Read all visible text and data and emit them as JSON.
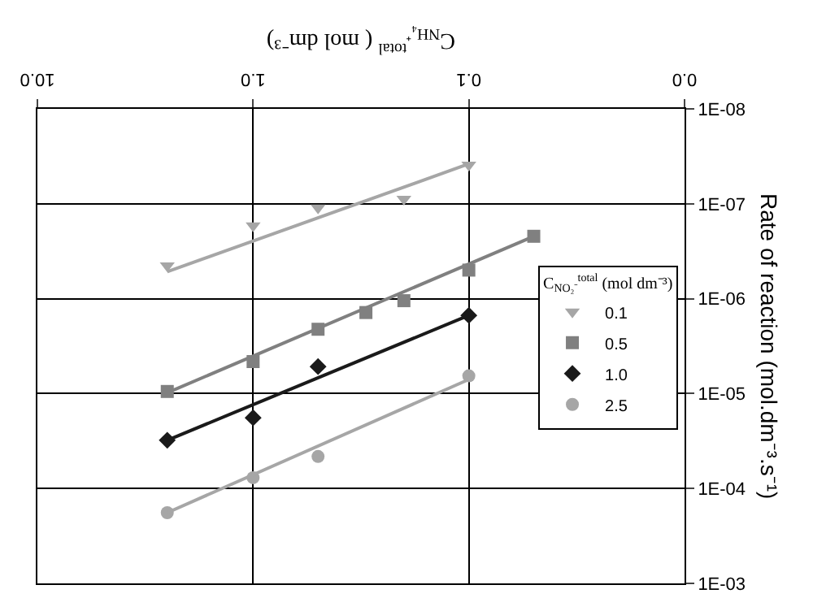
{
  "chart_data": {
    "type": "scatter",
    "xlabel": "C$_{NH₄⁺}$$^{total}$ ( mol dm⁻³)",
    "ylabel": "Rate of reaction (mol.dm⁻³.s⁻¹)",
    "legend_title": "C$_{NO₂⁻}$$^{total}$ (mol dm⁻³)",
    "log": "xy",
    "xlim": [
      10,
      0.01
    ],
    "ylim": [
      0.001,
      1e-08
    ],
    "xticks": [
      {
        "value": 0.01,
        "label": "0.0"
      },
      {
        "value": 0.1,
        "label": "0.1"
      },
      {
        "value": 1,
        "label": "1.0"
      },
      {
        "value": 10,
        "label": "10.0"
      }
    ],
    "yticks": [
      {
        "value": 1e-08,
        "label": "1E-08"
      },
      {
        "value": 1e-07,
        "label": "1E-07"
      },
      {
        "value": 1e-06,
        "label": "1E-06"
      },
      {
        "value": 1e-05,
        "label": "1E-05"
      },
      {
        "value": 0.0001,
        "label": "1E-04"
      },
      {
        "value": 0.001,
        "label": "1E-03"
      }
    ],
    "grid": true,
    "legend": "right",
    "series": [
      {
        "name": "0.1",
        "color": "#a6a6a6",
        "marker": "triangle",
        "x": [
          0.1,
          0.2,
          0.5,
          1.0,
          2.5
        ],
        "values": [
          3.9e-08,
          8.9e-08,
          1.1e-07,
          1.7e-07,
          4.5e-07
        ]
      },
      {
        "name": "0.5",
        "color": "#808080",
        "marker": "square",
        "x": [
          0.05,
          0.1,
          0.2,
          0.3,
          0.5,
          1.0,
          2.5
        ],
        "values": [
          2.2e-07,
          5e-07,
          1.05e-06,
          1.4e-06,
          2.1e-06,
          4.6e-06,
          9.5e-06
        ]
      },
      {
        "name": "1.0",
        "color": "#1a1a1a",
        "marker": "diamond",
        "x": [
          0.1,
          0.5,
          1.0,
          2.5
        ],
        "values": [
          1.5e-06,
          5.2e-06,
          1.8e-05,
          3.1e-05
        ]
      },
      {
        "name": "2.5",
        "color": "#a6a6a6",
        "marker": "circle",
        "x": [
          0.1,
          0.5,
          1.0,
          2.5
        ],
        "values": [
          6.5e-06,
          4.6e-05,
          7.7e-05,
          0.00018
        ]
      },
      {
        "type": "line",
        "color": "#a6a6a6",
        "x": [
          0.1,
          2.5
        ],
        "values": [
          3.8e-08,
          5.2e-07
        ]
      },
      {
        "type": "line",
        "color": "#808080",
        "x": [
          0.05,
          2.5
        ],
        "values": [
          2.2e-07,
          9.8e-06
        ]
      },
      {
        "type": "line",
        "color": "#1a1a1a",
        "x": [
          0.1,
          2.5
        ],
        "values": [
          1.5e-06,
          3.1e-05
        ]
      },
      {
        "type": "line",
        "color": "#a6a6a6",
        "x": [
          0.1,
          2.5
        ],
        "values": [
          7.1e-06,
          0.00018
        ]
      }
    ]
  }
}
